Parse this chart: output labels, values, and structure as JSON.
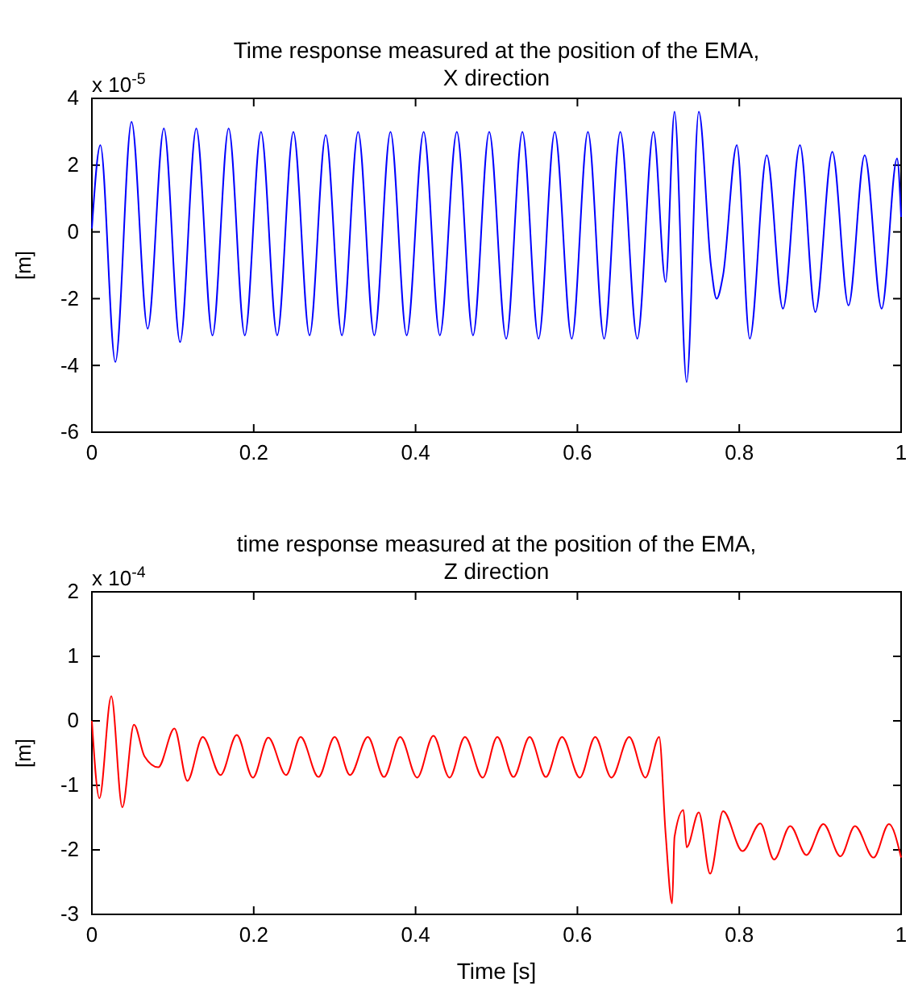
{
  "chart_data": [
    {
      "type": "line",
      "title": "Time response measured at the position of the EMA,\nX direction",
      "ylabel": "[m]",
      "annotations": [
        "x 10$^{-5}$"
      ],
      "xlim": [
        0,
        1
      ],
      "xticks": [
        0,
        0.2,
        0.4,
        0.6,
        0.8,
        1
      ],
      "ylim": [
        -6,
        4
      ],
      "yticks": [
        -6,
        -4,
        -2,
        0,
        2,
        4
      ],
      "grid": false,
      "series": [
        {
          "color": "#0000ff",
          "x": [
            0,
            0.0105,
            0.029,
            0.049,
            0.069,
            0.089,
            0.109,
            0.129,
            0.149,
            0.169,
            0.189,
            0.209,
            0.229,
            0.249,
            0.269,
            0.289,
            0.309,
            0.329,
            0.349,
            0.369,
            0.389,
            0.41,
            0.43,
            0.451,
            0.471,
            0.491,
            0.512,
            0.532,
            0.552,
            0.572,
            0.593,
            0.613,
            0.633,
            0.653,
            0.674,
            0.694,
            0.709,
            0.72,
            0.735,
            0.75,
            0.765,
            0.772,
            0.78,
            0.797,
            0.813,
            0.834,
            0.854,
            0.875,
            0.894,
            0.915,
            0.935,
            0.955,
            0.976,
            0.995,
            1
          ],
          "values": [
            0.1,
            2.6,
            -3.9,
            3.3,
            -2.9,
            3.1,
            -3.3,
            3.1,
            -3.1,
            3.1,
            -3.1,
            3.0,
            -3.1,
            3.0,
            -3.1,
            2.9,
            -3.1,
            3.0,
            -3.1,
            3.0,
            -3.1,
            3.0,
            -3.1,
            3.0,
            -3.1,
            3.0,
            -3.2,
            3.0,
            -3.2,
            3.0,
            -3.2,
            3.0,
            -3.2,
            3.0,
            -3.2,
            3.0,
            -1.5,
            3.6,
            -4.5,
            3.6,
            -1.0,
            -2.0,
            -1.3,
            2.6,
            -3.2,
            2.3,
            -2.3,
            2.6,
            -2.4,
            2.4,
            -2.2,
            2.3,
            -2.3,
            2.2,
            0.45
          ]
        }
      ]
    },
    {
      "type": "line",
      "title": "time response measured at the position of the EMA,\nZ direction",
      "xlabel": "Time [s]",
      "ylabel": "[m]",
      "annotations": [
        "x 10$^{-4}$"
      ],
      "xlim": [
        0,
        1
      ],
      "xticks": [
        0,
        0.2,
        0.4,
        0.6,
        0.8,
        1
      ],
      "ylim": [
        -3,
        2
      ],
      "yticks": [
        -3,
        -2,
        -1,
        0,
        1,
        2
      ],
      "grid": false,
      "series": [
        {
          "color": "#ff0000",
          "x": [
            0,
            0.0093,
            0.024,
            0.0376,
            0.052,
            0.065,
            0.082,
            0.102,
            0.118,
            0.137,
            0.159,
            0.179,
            0.199,
            0.218,
            0.24,
            0.258,
            0.28,
            0.3,
            0.319,
            0.341,
            0.361,
            0.381,
            0.402,
            0.422,
            0.442,
            0.461,
            0.483,
            0.501,
            0.521,
            0.541,
            0.561,
            0.581,
            0.603,
            0.622,
            0.642,
            0.664,
            0.684,
            0.701,
            0.709,
            0.717,
            0.72,
            0.731,
            0.735,
            0.75,
            0.764,
            0.78,
            0.804,
            0.826,
            0.843,
            0.863,
            0.883,
            0.904,
            0.925,
            0.943,
            0.966,
            0.985,
            1
          ],
          "values": [
            0,
            -1.2,
            0.38,
            -1.34,
            -0.06,
            -0.55,
            -0.72,
            -0.12,
            -0.93,
            -0.25,
            -0.84,
            -0.22,
            -0.88,
            -0.26,
            -0.84,
            -0.25,
            -0.87,
            -0.25,
            -0.84,
            -0.25,
            -0.87,
            -0.25,
            -0.88,
            -0.23,
            -0.88,
            -0.25,
            -0.88,
            -0.25,
            -0.87,
            -0.25,
            -0.87,
            -0.25,
            -0.88,
            -0.25,
            -0.88,
            -0.25,
            -0.88,
            -0.25,
            -1.75,
            -2.83,
            -1.8,
            -1.38,
            -1.96,
            -1.42,
            -2.37,
            -1.4,
            -2.02,
            -1.59,
            -2.15,
            -1.63,
            -2.08,
            -1.6,
            -2.1,
            -1.63,
            -2.12,
            -1.6,
            -2.12
          ]
        }
      ]
    }
  ]
}
